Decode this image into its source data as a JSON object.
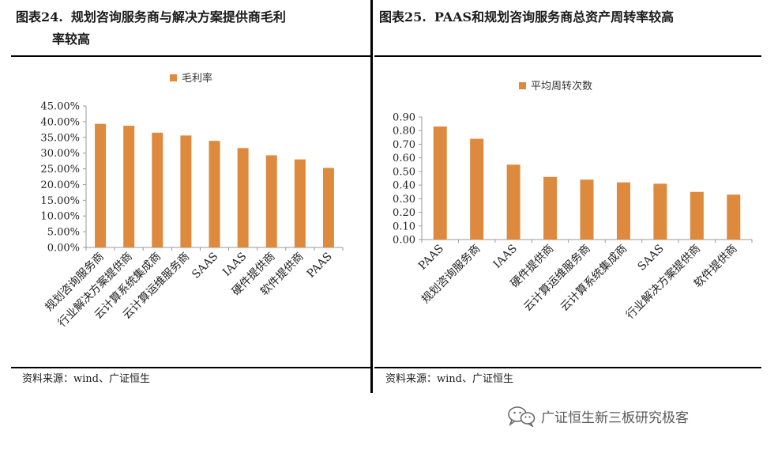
{
  "left": {
    "fig_no": "图表24.",
    "title_line1": "规划咨询服务商与解决方案提供商毛利",
    "title_line2": "率较高",
    "source": "资料来源：wind、广证恒生",
    "chart_data": {
      "type": "bar",
      "title": "",
      "categories": [
        "规划咨询服务商",
        "行业解决方案提供商",
        "云计算系统集成商",
        "云计算运维服务商",
        "SAAS",
        "IAAS",
        "硬件提供商",
        "软件提供商",
        "PAAS"
      ],
      "series": [
        {
          "name": "毛利率",
          "values": [
            39.3,
            38.7,
            36.5,
            35.6,
            33.9,
            31.6,
            29.3,
            28.0,
            25.3
          ]
        }
      ],
      "ylim": [
        0,
        45
      ],
      "ytick_step": 5,
      "yticks": [
        "0.00%",
        "5.00%",
        "10.00%",
        "15.00%",
        "20.00%",
        "25.00%",
        "30.00%",
        "35.00%",
        "40.00%",
        "45.00%"
      ],
      "xlabel": "",
      "ylabel": "",
      "grid": false,
      "legend_position": "top",
      "color": "#DD8A3E"
    }
  },
  "right": {
    "fig_no": "图表25.",
    "title": "PAAS和规划咨询服务商总资产周转率较高",
    "source": "资料来源：wind、广证恒生",
    "chart_data": {
      "type": "bar",
      "title": "",
      "categories": [
        "PAAS",
        "规划咨询服务商",
        "IAAS",
        "硬件提供商",
        "云计算运维服务商",
        "云计算系统集成商",
        "SAAS",
        "行业解决方案提供商",
        "软件提供商"
      ],
      "series": [
        {
          "name": "平均周转次数",
          "values": [
            0.83,
            0.74,
            0.55,
            0.46,
            0.44,
            0.42,
            0.41,
            0.35,
            0.33
          ]
        }
      ],
      "ylim": [
        0,
        0.9
      ],
      "ytick_step": 0.1,
      "yticks": [
        "0.00",
        "0.10",
        "0.20",
        "0.30",
        "0.40",
        "0.50",
        "0.60",
        "0.70",
        "0.80",
        "0.90"
      ],
      "xlabel": "",
      "ylabel": "",
      "grid": false,
      "legend_position": "top",
      "color": "#DD8A3E"
    }
  },
  "watermark": {
    "icon": "wechat-icon",
    "text": "广证恒生新三板研究极客"
  }
}
